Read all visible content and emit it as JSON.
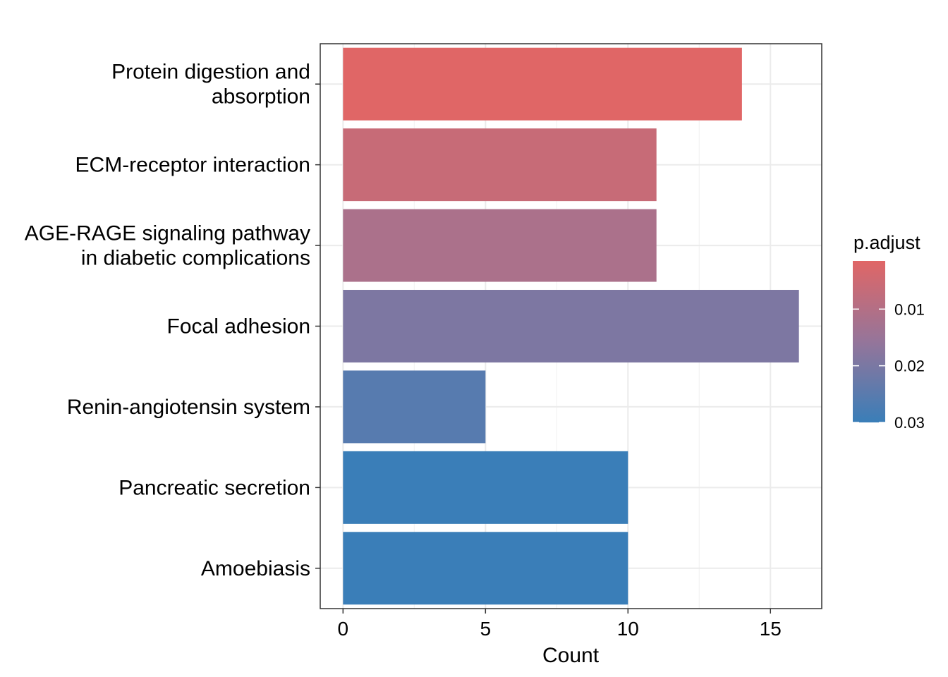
{
  "chart_data": {
    "type": "bar",
    "orientation": "horizontal",
    "categories": [
      [
        "Protein digestion and",
        "absorption"
      ],
      [
        "ECM-receptor interaction"
      ],
      [
        "AGE-RAGE signaling pathway",
        "in diabetic complications"
      ],
      [
        "Focal adhesion"
      ],
      [
        "Renin-angiotensin system"
      ],
      [
        "Pancreatic secretion"
      ],
      [
        "Amoebiasis"
      ]
    ],
    "values": [
      14,
      11,
      11,
      16,
      5,
      10,
      10
    ],
    "p_adjust": [
      0.0015,
      0.0062,
      0.0116,
      0.0195,
      0.0255,
      0.03,
      0.03
    ],
    "xlabel": "Count",
    "xlim": [
      -0.8,
      16.8
    ],
    "xticks": [
      0,
      5,
      10,
      15
    ],
    "grid": true,
    "legend": {
      "title": "p.adjust",
      "placement": "right",
      "ticks": [
        0.01,
        0.02,
        0.03
      ],
      "tick_labels": [
        "0.01",
        "0.02",
        "0.03"
      ],
      "range": [
        0.0015,
        0.03
      ],
      "color_low": "#E06666",
      "color_high": "#3A7EB8"
    }
  }
}
